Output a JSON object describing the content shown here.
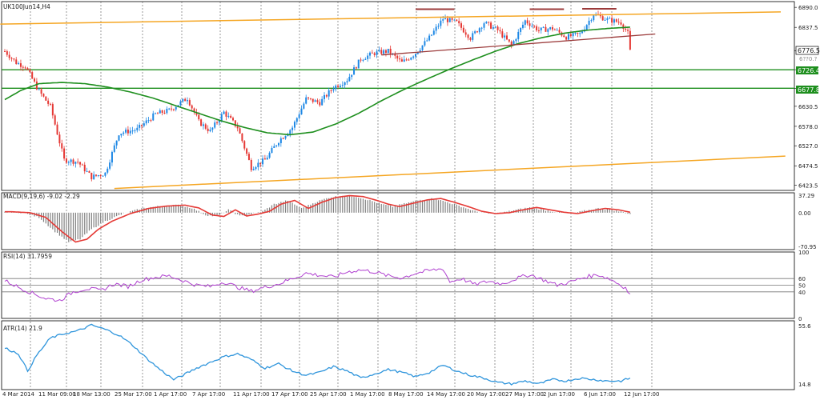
{
  "window": {
    "title": "UK100Jun14,H4"
  },
  "colors": {
    "bull": "#1e88e5",
    "bear": "#e53935",
    "ma": "#1e8f1e",
    "channel": "#f5a623",
    "trend": "#9c3b3b",
    "hline": "#1e8f1e",
    "macd_hist": "#808080",
    "macd_signal": "#e53935",
    "rsi": "#b040d0",
    "atr": "#2f95dc",
    "grid": "#555555"
  },
  "chart_data": [
    {
      "type": "candlestick",
      "name": "price",
      "title": "UK100Jun14,H4",
      "ylim": [
        6410,
        6905
      ],
      "y_ticks": [
        6890.0,
        6837.5,
        6776.5,
        6726.4,
        6677.8,
        6630.5,
        6578.0,
        6527.0,
        6474.5,
        6423.5
      ],
      "price_labels": {
        "current": "6776.5",
        "level_high": "6726.4",
        "level_low": "6677.8",
        "partial_label": "6??0.?"
      },
      "x_ticks": [
        "4 Mar 2014",
        "11 Mar 09:00",
        "18 Mar 13:00",
        "25 Mar 17:00",
        "1 Apr 17:00",
        "7 Apr 17:00",
        "11 Apr 17:00",
        "17 Apr 17:00",
        "25 Apr 17:00",
        "1 May 17:00",
        "8 May 17:00",
        "14 May 17:00",
        "20 May 17:00",
        "27 May 17:00",
        "2 Jun 17:00",
        "6 Jun 17:00",
        "12 Jun 17:00"
      ],
      "horizontal_levels": [
        6726.4,
        6677.8
      ],
      "anchors": [
        [
          0,
          6775
        ],
        [
          5,
          6745
        ],
        [
          9,
          6735
        ],
        [
          15,
          6670
        ],
        [
          20,
          6630
        ],
        [
          26,
          6490
        ],
        [
          32,
          6485
        ],
        [
          38,
          6445
        ],
        [
          44,
          6455
        ],
        [
          50,
          6560
        ],
        [
          58,
          6570
        ],
        [
          66,
          6610
        ],
        [
          72,
          6620
        ],
        [
          80,
          6652
        ],
        [
          85,
          6590
        ],
        [
          90,
          6565
        ],
        [
          96,
          6615
        ],
        [
          102,
          6575
        ],
        [
          108,
          6470
        ],
        [
          114,
          6490
        ],
        [
          120,
          6540
        ],
        [
          126,
          6575
        ],
        [
          132,
          6650
        ],
        [
          138,
          6640
        ],
        [
          144,
          6680
        ],
        [
          150,
          6700
        ],
        [
          156,
          6755
        ],
        [
          162,
          6770
        ],
        [
          168,
          6775
        ],
        [
          174,
          6745
        ],
        [
          180,
          6770
        ],
        [
          186,
          6810
        ],
        [
          192,
          6860
        ],
        [
          198,
          6850
        ],
        [
          204,
          6810
        ],
        [
          210,
          6850
        ],
        [
          216,
          6830
        ],
        [
          222,
          6790
        ],
        [
          228,
          6855
        ],
        [
          234,
          6830
        ],
        [
          240,
          6835
        ],
        [
          246,
          6812
        ],
        [
          252,
          6820
        ],
        [
          258,
          6872
        ],
        [
          264,
          6858
        ],
        [
          270,
          6850
        ],
        [
          273,
          6822
        ],
        [
          274,
          6775
        ]
      ],
      "moving_average": [
        [
          0,
          6648
        ],
        [
          7,
          6672
        ],
        [
          15,
          6690
        ],
        [
          25,
          6693
        ],
        [
          35,
          6690
        ],
        [
          45,
          6681
        ],
        [
          55,
          6668
        ],
        [
          65,
          6652
        ],
        [
          75,
          6632
        ],
        [
          85,
          6612
        ],
        [
          95,
          6592
        ],
        [
          105,
          6575
        ],
        [
          115,
          6561
        ],
        [
          125,
          6556
        ],
        [
          135,
          6563
        ],
        [
          145,
          6584
        ],
        [
          155,
          6612
        ],
        [
          165,
          6645
        ],
        [
          175,
          6675
        ],
        [
          185,
          6702
        ],
        [
          195,
          6728
        ],
        [
          205,
          6752
        ],
        [
          215,
          6775
        ],
        [
          225,
          6795
        ],
        [
          235,
          6810
        ],
        [
          245,
          6822
        ],
        [
          255,
          6830
        ],
        [
          265,
          6835
        ],
        [
          274,
          6838
        ]
      ],
      "channel_upper": [
        [
          -2,
          6846
        ],
        [
          340,
          6878
        ]
      ],
      "channel_lower": [
        [
          48,
          6415
        ],
        [
          342,
          6500
        ]
      ],
      "trendline": [
        [
          165,
          6765
        ],
        [
          285,
          6820
        ]
      ],
      "resistance_marks": [
        [
          180,
          197,
          6885
        ],
        [
          230,
          245,
          6885
        ],
        [
          253,
          268,
          6886
        ]
      ]
    },
    {
      "type": "histogram",
      "name": "macd",
      "label": "MACD(9,19,6) -9.02 -2.29",
      "ylim": [
        -78,
        42
      ],
      "y_ticks": [
        37.29,
        0.0,
        -70.95
      ],
      "anchors": [
        [
          0,
          2
        ],
        [
          8,
          0
        ],
        [
          15,
          -10
        ],
        [
          22,
          -40
        ],
        [
          28,
          -62
        ],
        [
          33,
          -56
        ],
        [
          38,
          -35
        ],
        [
          44,
          -18
        ],
        [
          52,
          -2
        ],
        [
          60,
          9
        ],
        [
          68,
          14
        ],
        [
          76,
          16
        ],
        [
          82,
          10
        ],
        [
          88,
          -5
        ],
        [
          93,
          -8
        ],
        [
          98,
          6
        ],
        [
          103,
          -7
        ],
        [
          108,
          -3
        ],
        [
          113,
          3
        ],
        [
          118,
          18
        ],
        [
          124,
          26
        ],
        [
          130,
          9
        ],
        [
          136,
          22
        ],
        [
          142,
          32
        ],
        [
          148,
          36
        ],
        [
          154,
          34
        ],
        [
          160,
          26
        ],
        [
          165,
          18
        ],
        [
          170,
          13
        ],
        [
          176,
          20
        ],
        [
          182,
          27
        ],
        [
          188,
          30
        ],
        [
          194,
          22
        ],
        [
          200,
          13
        ],
        [
          206,
          3
        ],
        [
          212,
          -2
        ],
        [
          218,
          0
        ],
        [
          224,
          6
        ],
        [
          230,
          11
        ],
        [
          236,
          6
        ],
        [
          242,
          1
        ],
        [
          248,
          -2
        ],
        [
          254,
          4
        ],
        [
          260,
          9
        ],
        [
          266,
          6
        ],
        [
          272,
          0
        ],
        [
          274,
          -3
        ]
      ],
      "signal_offset": 3
    },
    {
      "type": "line",
      "name": "rsi",
      "label": "RSI(14) 31.7959",
      "ylim": [
        0,
        100
      ],
      "y_ticks": [
        100,
        60,
        50,
        40,
        0
      ],
      "levels": [
        60,
        50,
        40
      ],
      "anchors": [
        [
          0,
          57
        ],
        [
          6,
          47
        ],
        [
          12,
          38
        ],
        [
          18,
          30
        ],
        [
          24,
          27
        ],
        [
          30,
          40
        ],
        [
          36,
          45
        ],
        [
          42,
          42
        ],
        [
          48,
          52
        ],
        [
          54,
          48
        ],
        [
          60,
          58
        ],
        [
          66,
          62
        ],
        [
          72,
          64
        ],
        [
          78,
          57
        ],
        [
          84,
          50
        ],
        [
          90,
          48
        ],
        [
          96,
          55
        ],
        [
          102,
          47
        ],
        [
          108,
          41
        ],
        [
          114,
          47
        ],
        [
          120,
          52
        ],
        [
          126,
          60
        ],
        [
          132,
          68
        ],
        [
          138,
          65
        ],
        [
          144,
          62
        ],
        [
          150,
          70
        ],
        [
          156,
          73
        ],
        [
          162,
          70
        ],
        [
          168,
          64
        ],
        [
          174,
          61
        ],
        [
          180,
          68
        ],
        [
          186,
          72
        ],
        [
          192,
          75
        ],
        [
          195,
          55
        ],
        [
          200,
          60
        ],
        [
          206,
          51
        ],
        [
          212,
          56
        ],
        [
          218,
          52
        ],
        [
          224,
          60
        ],
        [
          230,
          66
        ],
        [
          236,
          58
        ],
        [
          242,
          50
        ],
        [
          248,
          55
        ],
        [
          254,
          62
        ],
        [
          260,
          66
        ],
        [
          266,
          58
        ],
        [
          272,
          46
        ],
        [
          274,
          35
        ]
      ]
    },
    {
      "type": "line",
      "name": "atr",
      "label": "ATR(14) 21.9",
      "ylim": [
        11,
        59
      ],
      "y_ticks": [
        55.6,
        14.8
      ],
      "anchors": [
        [
          0,
          40
        ],
        [
          6,
          36
        ],
        [
          10,
          24
        ],
        [
          14,
          35
        ],
        [
          20,
          47
        ],
        [
          26,
          50
        ],
        [
          32,
          52
        ],
        [
          38,
          56
        ],
        [
          44,
          53
        ],
        [
          50,
          49
        ],
        [
          56,
          42
        ],
        [
          62,
          33
        ],
        [
          68,
          25
        ],
        [
          74,
          18
        ],
        [
          78,
          21
        ],
        [
          84,
          26
        ],
        [
          90,
          30
        ],
        [
          96,
          34
        ],
        [
          102,
          36
        ],
        [
          108,
          32
        ],
        [
          114,
          26
        ],
        [
          120,
          29
        ],
        [
          126,
          24
        ],
        [
          132,
          21
        ],
        [
          138,
          23
        ],
        [
          144,
          27
        ],
        [
          150,
          24
        ],
        [
          156,
          19
        ],
        [
          162,
          22
        ],
        [
          168,
          25
        ],
        [
          174,
          23
        ],
        [
          180,
          20
        ],
        [
          186,
          23
        ],
        [
          192,
          28
        ],
        [
          198,
          24
        ],
        [
          204,
          21
        ],
        [
          210,
          19
        ],
        [
          216,
          16
        ],
        [
          222,
          15
        ],
        [
          228,
          17
        ],
        [
          234,
          15
        ],
        [
          240,
          18
        ],
        [
          246,
          17
        ],
        [
          252,
          19
        ],
        [
          258,
          18
        ],
        [
          264,
          17
        ],
        [
          270,
          17
        ],
        [
          274,
          19
        ]
      ]
    }
  ]
}
